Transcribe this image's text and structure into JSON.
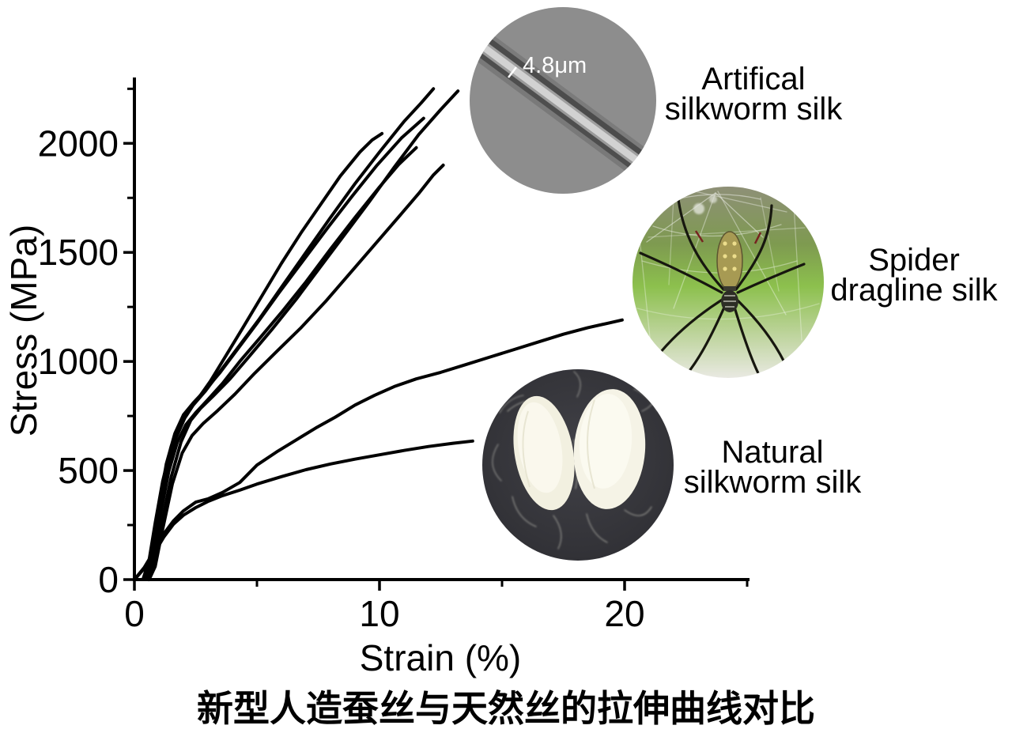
{
  "caption": {
    "text": "新型人造蚕丝与天然丝的拉伸曲线对比",
    "color": "#1e1ead"
  },
  "insets": [
    {
      "id": "artificial-silkworm-silk",
      "label_lines": [
        "Artifical",
        "silkworm silk"
      ],
      "annotation": "4.8μm"
    },
    {
      "id": "spider-dragline-silk",
      "label_lines": [
        "Spider",
        "dragline silk"
      ]
    },
    {
      "id": "natural-silkworm-silk",
      "label_lines": [
        "Natural",
        "silkworm silk"
      ]
    }
  ],
  "chart_data": {
    "type": "line",
    "title": "",
    "xlabel": "Strain (%)",
    "ylabel": "Stress (MPa)",
    "xlim": [
      0,
      25.1
    ],
    "ylim": [
      0,
      2300
    ],
    "grid": false,
    "legend": "none",
    "line_color": "#000000",
    "x_axis": {
      "major_ticks": [
        0,
        10,
        20
      ],
      "minor_ticks": [
        5,
        15,
        25
      ]
    },
    "y_axis": {
      "major_ticks": [
        0,
        500,
        1000,
        1500,
        2000
      ],
      "minor_ticks": [
        250,
        750,
        1250,
        1750,
        2250
      ]
    },
    "series": [
      {
        "name": "artificial-silkworm-silk-1",
        "group": "artificial silkworm silk",
        "points": [
          [
            0.35,
            0
          ],
          [
            0.6,
            90
          ],
          [
            0.85,
            260
          ],
          [
            1.15,
            450
          ],
          [
            1.5,
            610
          ],
          [
            1.85,
            710
          ],
          [
            2.2,
            775
          ],
          [
            2.6,
            830
          ],
          [
            3.1,
            910
          ],
          [
            3.7,
            1020
          ],
          [
            4.4,
            1150
          ],
          [
            5.2,
            1300
          ],
          [
            6.0,
            1450
          ],
          [
            6.8,
            1590
          ],
          [
            7.6,
            1720
          ],
          [
            8.4,
            1850
          ],
          [
            9.2,
            1960
          ],
          [
            9.7,
            2015
          ],
          [
            10.1,
            2045
          ]
        ]
      },
      {
        "name": "artificial-silkworm-silk-2",
        "group": "artificial silkworm silk",
        "points": [
          [
            0.45,
            0
          ],
          [
            0.7,
            80
          ],
          [
            1.0,
            280
          ],
          [
            1.35,
            500
          ],
          [
            1.7,
            650
          ],
          [
            2.05,
            740
          ],
          [
            2.4,
            800
          ],
          [
            2.9,
            865
          ],
          [
            3.5,
            955
          ],
          [
            4.3,
            1075
          ],
          [
            5.1,
            1195
          ],
          [
            6.0,
            1340
          ],
          [
            7.0,
            1500
          ],
          [
            8.0,
            1660
          ],
          [
            9.0,
            1815
          ],
          [
            10.0,
            1960
          ],
          [
            11.0,
            2100
          ],
          [
            11.7,
            2185
          ],
          [
            12.2,
            2250
          ]
        ]
      },
      {
        "name": "artificial-silkworm-silk-3",
        "group": "artificial silkworm silk",
        "points": [
          [
            0.55,
            0
          ],
          [
            0.8,
            70
          ],
          [
            1.1,
            250
          ],
          [
            1.5,
            470
          ],
          [
            1.9,
            630
          ],
          [
            2.3,
            730
          ],
          [
            2.7,
            785
          ],
          [
            3.2,
            840
          ],
          [
            3.9,
            920
          ],
          [
            4.7,
            1025
          ],
          [
            5.6,
            1145
          ],
          [
            6.6,
            1285
          ],
          [
            7.6,
            1435
          ],
          [
            8.6,
            1585
          ],
          [
            9.6,
            1735
          ],
          [
            10.6,
            1890
          ],
          [
            11.6,
            2040
          ],
          [
            12.5,
            2155
          ],
          [
            13.2,
            2240
          ]
        ]
      },
      {
        "name": "artificial-silkworm-silk-4",
        "group": "artificial silkworm silk",
        "points": [
          [
            0.5,
            0
          ],
          [
            0.75,
            90
          ],
          [
            1.05,
            290
          ],
          [
            1.4,
            495
          ],
          [
            1.75,
            630
          ],
          [
            2.1,
            710
          ],
          [
            2.5,
            765
          ],
          [
            3.0,
            825
          ],
          [
            3.6,
            900
          ],
          [
            4.3,
            1000
          ],
          [
            5.1,
            1105
          ],
          [
            6.0,
            1225
          ],
          [
            7.0,
            1365
          ],
          [
            8.0,
            1515
          ],
          [
            9.0,
            1660
          ],
          [
            10.0,
            1800
          ],
          [
            10.8,
            1905
          ],
          [
            11.5,
            1980
          ]
        ]
      },
      {
        "name": "artificial-silkworm-silk-5",
        "group": "artificial silkworm silk",
        "points": [
          [
            0.6,
            0
          ],
          [
            0.85,
            60
          ],
          [
            1.15,
            230
          ],
          [
            1.55,
            440
          ],
          [
            1.95,
            580
          ],
          [
            2.35,
            660
          ],
          [
            2.8,
            715
          ],
          [
            3.4,
            775
          ],
          [
            4.1,
            850
          ],
          [
            4.9,
            945
          ],
          [
            5.8,
            1045
          ],
          [
            6.8,
            1155
          ],
          [
            7.8,
            1275
          ],
          [
            8.8,
            1405
          ],
          [
            9.8,
            1535
          ],
          [
            10.8,
            1665
          ],
          [
            11.6,
            1770
          ],
          [
            12.2,
            1855
          ],
          [
            12.6,
            1900
          ]
        ]
      },
      {
        "name": "artificial-silkworm-silk-6",
        "group": "artificial silkworm silk",
        "points": [
          [
            0.4,
            0
          ],
          [
            0.65,
            100
          ],
          [
            0.95,
            300
          ],
          [
            1.3,
            530
          ],
          [
            1.65,
            670
          ],
          [
            2.0,
            755
          ],
          [
            2.4,
            810
          ],
          [
            2.9,
            870
          ],
          [
            3.5,
            950
          ],
          [
            4.2,
            1055
          ],
          [
            5.0,
            1175
          ],
          [
            5.9,
            1315
          ],
          [
            6.9,
            1465
          ],
          [
            7.9,
            1615
          ],
          [
            8.9,
            1760
          ],
          [
            9.9,
            1900
          ],
          [
            10.9,
            2025
          ],
          [
            11.8,
            2115
          ]
        ]
      },
      {
        "name": "spider-dragline-silk",
        "group": "spider dragline silk",
        "points": [
          [
            0,
            0
          ],
          [
            0.4,
            55
          ],
          [
            0.8,
            130
          ],
          [
            1.2,
            210
          ],
          [
            1.6,
            270
          ],
          [
            2.0,
            315
          ],
          [
            2.5,
            355
          ],
          [
            3.0,
            370
          ],
          [
            3.6,
            400
          ],
          [
            4.3,
            445
          ],
          [
            5.0,
            525
          ],
          [
            5.8,
            585
          ],
          [
            6.6,
            640
          ],
          [
            7.4,
            695
          ],
          [
            8.2,
            745
          ],
          [
            9.0,
            800
          ],
          [
            9.8,
            845
          ],
          [
            10.6,
            885
          ],
          [
            11.5,
            920
          ],
          [
            12.5,
            950
          ],
          [
            13.5,
            985
          ],
          [
            14.5,
            1020
          ],
          [
            15.5,
            1055
          ],
          [
            16.5,
            1090
          ],
          [
            17.5,
            1125
          ],
          [
            18.5,
            1155
          ],
          [
            19.3,
            1175
          ],
          [
            19.9,
            1190
          ]
        ]
      },
      {
        "name": "natural-silkworm-silk",
        "group": "natural silkworm silk",
        "points": [
          [
            0,
            0
          ],
          [
            0.4,
            50
          ],
          [
            0.8,
            120
          ],
          [
            1.2,
            195
          ],
          [
            1.6,
            255
          ],
          [
            2.0,
            295
          ],
          [
            2.5,
            330
          ],
          [
            3.0,
            358
          ],
          [
            3.6,
            385
          ],
          [
            4.3,
            410
          ],
          [
            5.0,
            438
          ],
          [
            6.0,
            472
          ],
          [
            7.0,
            504
          ],
          [
            8.0,
            530
          ],
          [
            9.0,
            552
          ],
          [
            10.0,
            572
          ],
          [
            11.0,
            592
          ],
          [
            12.0,
            610
          ],
          [
            13.0,
            625
          ],
          [
            13.8,
            635
          ]
        ]
      }
    ]
  }
}
